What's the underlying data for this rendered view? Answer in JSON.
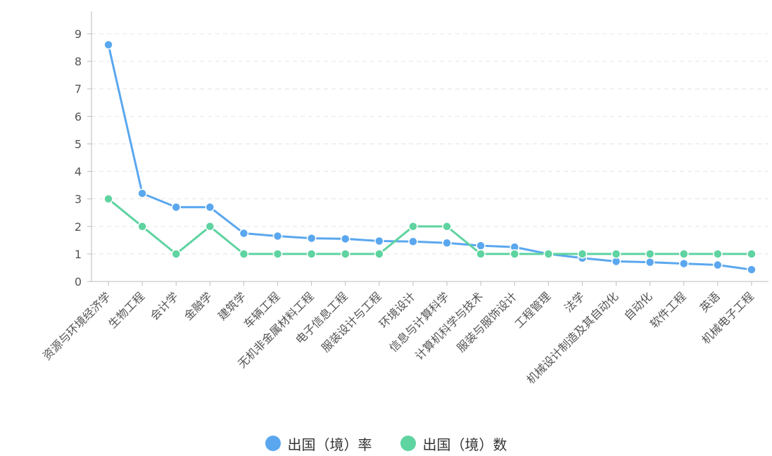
{
  "chart_data": {
    "type": "line",
    "categories": [
      "资源与环境经济学",
      "生物工程",
      "会计学",
      "金融学",
      "建筑学",
      "车辆工程",
      "无机非金属材料工程",
      "电子信息工程",
      "服装设计与工程",
      "环境设计",
      "信息与计算科学",
      "计算机科学与技术",
      "服装与服饰设计",
      "工程管理",
      "法学",
      "机械设计制造及其自动化",
      "自动化",
      "软件工程",
      "英语",
      "机械电子工程"
    ],
    "series": [
      {
        "name": "出国（境）率",
        "color": "#5aa7ef",
        "values": [
          8.6,
          3.2,
          2.7,
          2.7,
          1.75,
          1.65,
          1.57,
          1.55,
          1.47,
          1.45,
          1.4,
          1.3,
          1.25,
          1.0,
          0.85,
          0.73,
          0.7,
          0.65,
          0.6,
          0.43
        ]
      },
      {
        "name": "出国（境）数",
        "color": "#5fd3a0",
        "values": [
          3,
          2,
          1,
          2,
          1,
          1,
          1,
          1,
          1,
          2,
          2,
          1,
          1,
          1,
          1,
          1,
          1,
          1,
          1,
          1
        ]
      }
    ],
    "ylim": [
      0,
      9
    ],
    "yticks": [
      0,
      1,
      2,
      3,
      4,
      5,
      6,
      7,
      8,
      9
    ],
    "grid": "horizontal dashed",
    "legend_position": "bottom-center"
  }
}
